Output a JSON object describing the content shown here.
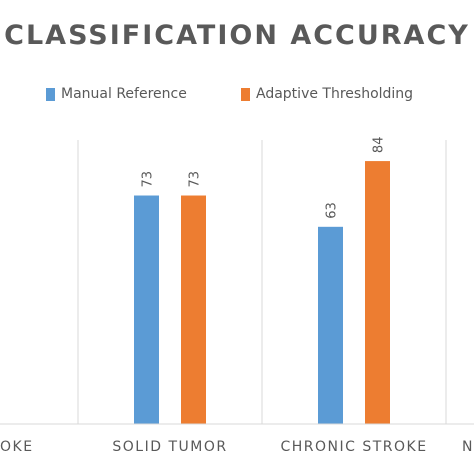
{
  "chart_data": {
    "type": "bar",
    "title": "CLASSIFICATION ACCURACY",
    "categories": [
      "STROKE",
      "SOLID TUMOR",
      "CHRONIC STROKE",
      "N"
    ],
    "visible_category_labels": [
      "OKE",
      "SOLID TUMOR",
      "CHRONIC STROKE",
      "N"
    ],
    "series": [
      {
        "name": "Manual Reference",
        "color": "#5b9bd5",
        "values": [
          null,
          73,
          63,
          null
        ]
      },
      {
        "name": "Adaptive Thresholding",
        "color": "#ed7d31",
        "values": [
          null,
          73,
          84,
          null
        ]
      }
    ],
    "ylim": [
      0,
      100
    ],
    "grid": false,
    "legend_position": "top"
  }
}
